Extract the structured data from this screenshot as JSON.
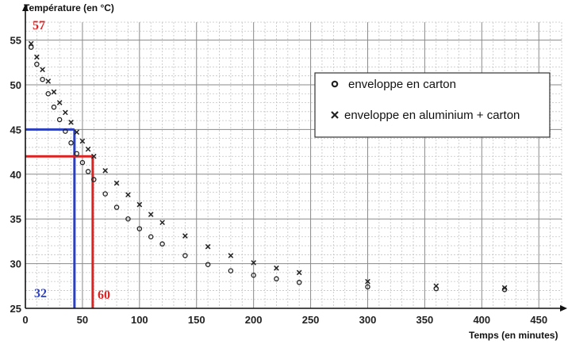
{
  "chart_data": {
    "type": "scatter",
    "title": "",
    "xlabel": "Temps (en minutes)",
    "ylabel": "Température (en °C)",
    "xlim": [
      0,
      470
    ],
    "ylim": [
      25,
      57
    ],
    "xticks": [
      0,
      50,
      100,
      150,
      200,
      250,
      300,
      350,
      400,
      450
    ],
    "yticks": [
      25,
      30,
      35,
      40,
      45,
      50,
      55
    ],
    "grid": true,
    "legend_position": "top-right",
    "series": [
      {
        "name": "enveloppe en carton",
        "marker": "circle",
        "x": [
          5,
          10,
          15,
          20,
          25,
          30,
          35,
          40,
          45,
          50,
          55,
          60,
          70,
          80,
          90,
          100,
          110,
          120,
          140,
          160,
          180,
          200,
          220,
          240,
          300,
          360,
          420
        ],
        "y": [
          54.2,
          52.3,
          50.6,
          49.0,
          47.5,
          46.1,
          44.8,
          43.5,
          42.3,
          41.3,
          40.3,
          39.4,
          37.8,
          36.3,
          35.0,
          33.9,
          33.0,
          32.2,
          30.9,
          29.9,
          29.2,
          28.7,
          28.3,
          27.9,
          27.4,
          27.2,
          27.1
        ]
      },
      {
        "name": "enveloppe en aluminium + carton",
        "marker": "x",
        "x": [
          5,
          10,
          15,
          20,
          25,
          30,
          35,
          40,
          45,
          50,
          55,
          60,
          70,
          80,
          90,
          100,
          110,
          120,
          140,
          160,
          180,
          200,
          220,
          240,
          300,
          360,
          420
        ],
        "y": [
          54.6,
          53.1,
          51.7,
          50.4,
          49.2,
          48.0,
          46.9,
          45.8,
          44.7,
          43.7,
          42.8,
          42.0,
          40.4,
          39.0,
          37.7,
          36.6,
          35.5,
          34.6,
          33.1,
          31.9,
          30.9,
          30.1,
          29.5,
          29.0,
          28.0,
          27.5,
          27.3
        ]
      }
    ],
    "annotations": [
      {
        "text": "57",
        "color": "#dd2222"
      },
      {
        "text": "32",
        "color": "#2b3fbf"
      },
      {
        "text": "60",
        "color": "#dd2222"
      }
    ],
    "reference_lines": [
      {
        "color": "#2b3fbf",
        "x": 43,
        "y": 45
      },
      {
        "color": "#dd2222",
        "x": 59,
        "y": 42
      }
    ]
  }
}
